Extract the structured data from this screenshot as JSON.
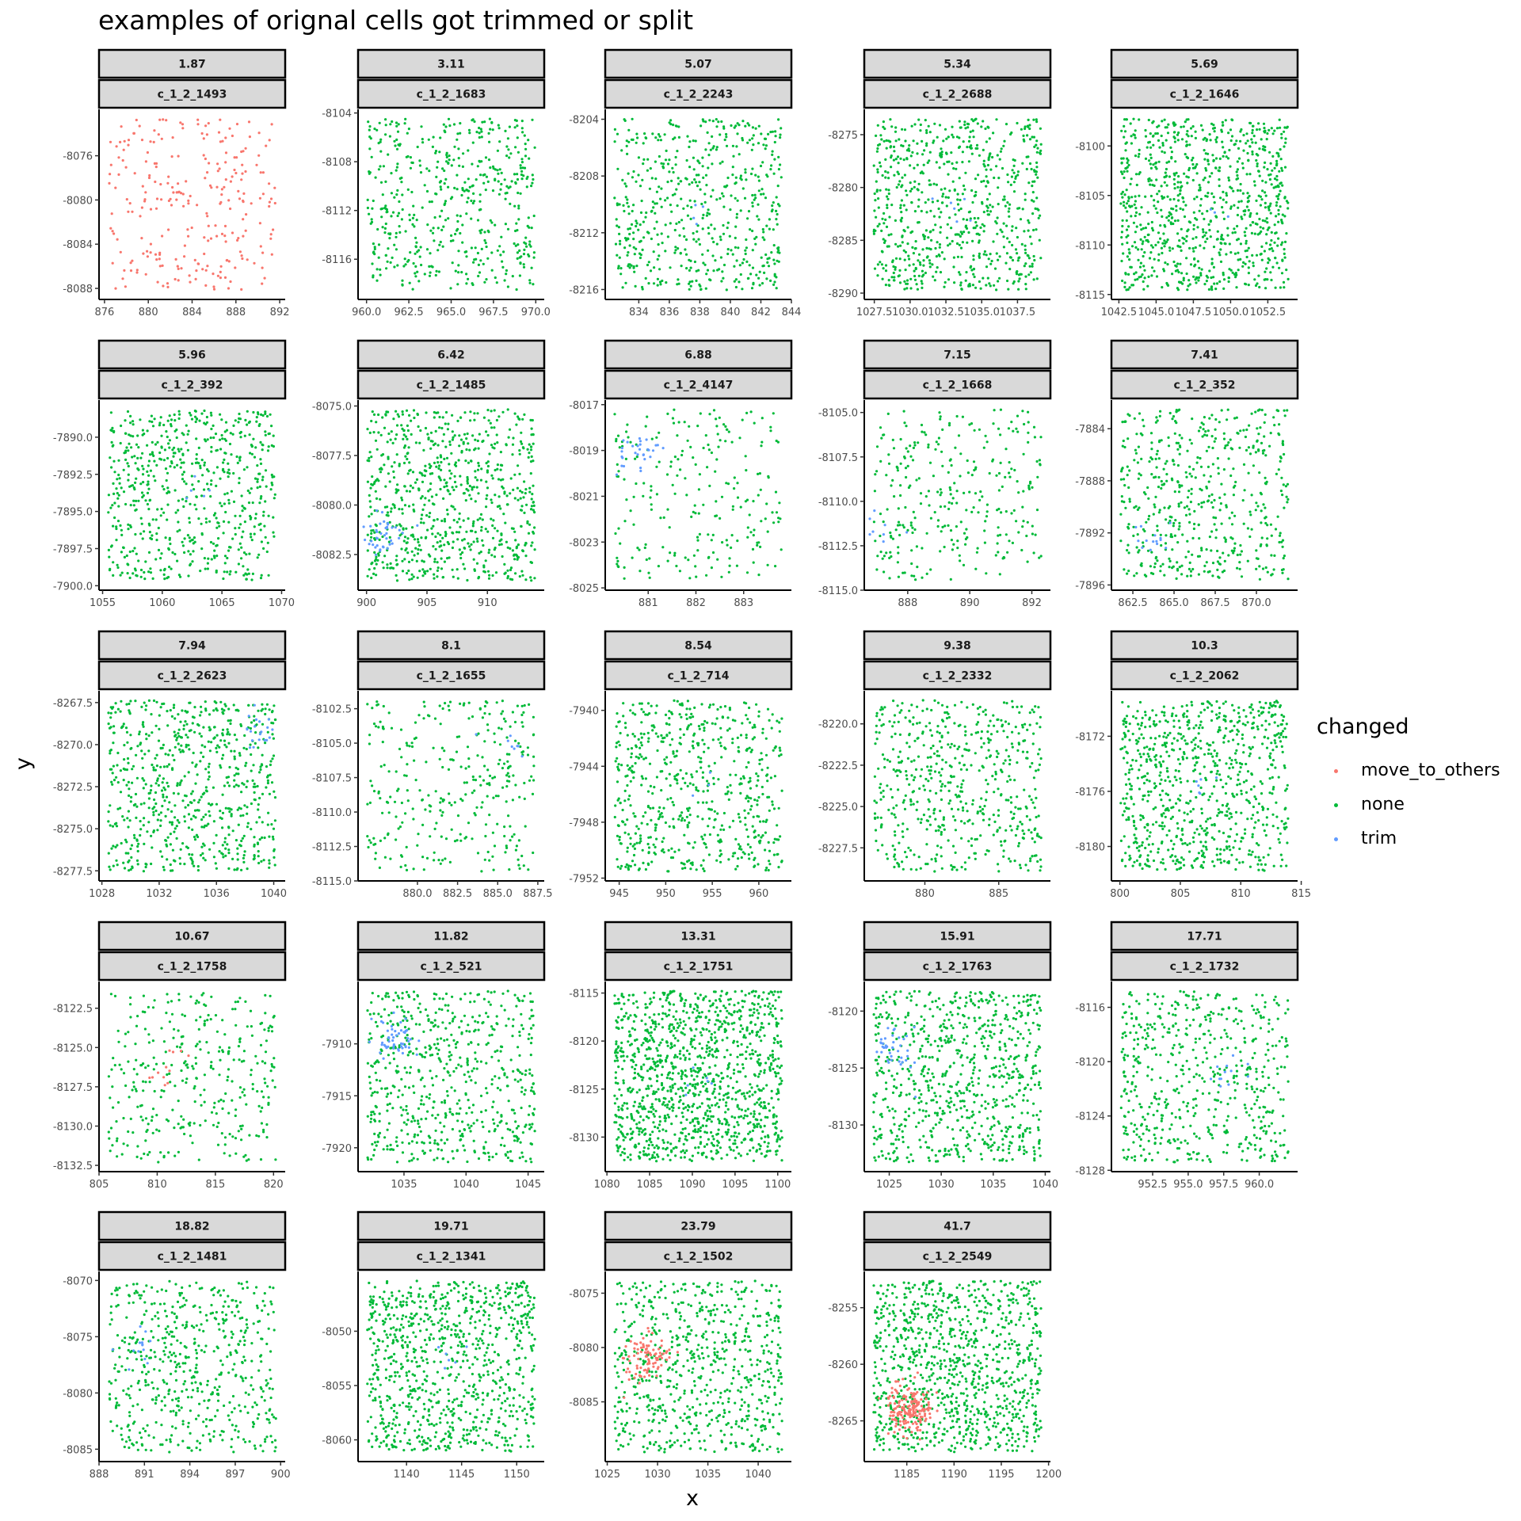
{
  "chart_data": {
    "type": "scatter",
    "title": "examples of orignal cells got trimmed or split",
    "xlabel": "x",
    "ylabel": "y",
    "legend": {
      "title": "changed",
      "position": "right",
      "entries": [
        {
          "name": "move_to_others",
          "color": "#F8766D"
        },
        {
          "name": "none",
          "color": "#00BA38"
        },
        {
          "name": "trim",
          "color": "#619CFF"
        }
      ]
    },
    "grid": false,
    "panels": [
      {
        "value": "1.87",
        "cell": "c_1_2_1493",
        "xlim": [
          875.5,
          892.5
        ],
        "ylim": [
          -8089,
          -8071.8
        ],
        "xticks": [
          876,
          880,
          884,
          888,
          892
        ],
        "xtick_labels": [
          "876",
          "880",
          "884",
          "888",
          "892"
        ],
        "yticks": [
          -8088,
          -8084,
          -8080,
          -8076
        ],
        "ytick_labels": [
          "-8088",
          "-8084",
          "-8080",
          "-8076"
        ]
      },
      {
        "value": "3.11",
        "cell": "c_1_2_1683",
        "xlim": [
          959.5,
          970.5
        ],
        "ylim": [
          -8119.3,
          -8103.7
        ],
        "xticks": [
          960,
          962.5,
          965,
          967.5,
          970
        ],
        "xtick_labels": [
          "960.0",
          "962.5",
          "965.0",
          "967.5",
          "970.0"
        ],
        "yticks": [
          -8116,
          -8112,
          -8108,
          -8104
        ],
        "ytick_labels": [
          "-8116",
          "-8112",
          "-8108",
          "-8104"
        ]
      },
      {
        "value": "5.07",
        "cell": "c_1_2_2243",
        "xlim": [
          831.8,
          844
        ],
        "ylim": [
          -8216.7,
          -8203.3
        ],
        "xticks": [
          834,
          836,
          838,
          840,
          842,
          844
        ],
        "xtick_labels": [
          "834",
          "836",
          "838",
          "840",
          "842",
          "844"
        ],
        "yticks": [
          -8216,
          -8212,
          -8208,
          -8204
        ],
        "ytick_labels": [
          "-8216",
          "-8212",
          "-8208",
          "-8204"
        ]
      },
      {
        "value": "5.34",
        "cell": "c_1_2_2688",
        "xlim": [
          1026.8,
          1039.8
        ],
        "ylim": [
          -8290.6,
          -8272.6
        ],
        "xticks": [
          1027.5,
          1030,
          1032.5,
          1035,
          1037.5
        ],
        "xtick_labels": [
          "1027.5",
          "1030.0",
          "1032.5",
          "1035.0",
          "1037.5"
        ],
        "yticks": [
          -8290,
          -8285,
          -8280,
          -8275
        ],
        "ytick_labels": [
          "-8290",
          "-8285",
          "-8280",
          "-8275"
        ]
      },
      {
        "value": "5.69",
        "cell": "c_1_2_1646",
        "xlim": [
          1042,
          1054.5
        ],
        "ylim": [
          -8115.5,
          -8096.3
        ],
        "xticks": [
          1042.5,
          1045,
          1047.5,
          1050,
          1052.5
        ],
        "xtick_labels": [
          "1042.5",
          "1045.0",
          "1047.5",
          "1050.0",
          "1052.5"
        ],
        "yticks": [
          -8115,
          -8110,
          -8105,
          -8100
        ],
        "ytick_labels": [
          "-8115",
          "-8110",
          "-8105",
          "-8100"
        ]
      },
      {
        "value": "5.96",
        "cell": "c_1_2_392",
        "xlim": [
          1054.7,
          1070.3
        ],
        "ylim": [
          -7900.3,
          -7887.5
        ],
        "xticks": [
          1055,
          1060,
          1065,
          1070
        ],
        "xtick_labels": [
          "1055",
          "1060",
          "1065",
          "1070"
        ],
        "yticks": [
          -7900,
          -7897.5,
          -7895,
          -7892.5,
          -7890
        ],
        "ytick_labels": [
          "-7900.0",
          "-7897.5",
          "-7895.0",
          "-7892.5",
          "-7890.0"
        ]
      },
      {
        "value": "6.42",
        "cell": "c_1_2_1485",
        "xlim": [
          899.3,
          914.7
        ],
        "ylim": [
          -8084.3,
          -8074.7
        ],
        "xticks": [
          900,
          905,
          910
        ],
        "xtick_labels": [
          "900",
          "905",
          "910"
        ],
        "yticks": [
          -8082.5,
          -8080,
          -8077.5,
          -8075
        ],
        "ytick_labels": [
          "-8082.5",
          "-8080.0",
          "-8077.5",
          "-8075.0"
        ]
      },
      {
        "value": "6.88",
        "cell": "c_1_2_4147",
        "xlim": [
          880.1,
          884
        ],
        "ylim": [
          -8025.1,
          -8016.8
        ],
        "xticks": [
          881,
          882,
          883
        ],
        "xtick_labels": [
          "881",
          "882",
          "883"
        ],
        "yticks": [
          -8025,
          -8023,
          -8021,
          -8019,
          -8017
        ],
        "ytick_labels": [
          "-8025",
          "-8023",
          "-8021",
          "-8019",
          "-8017"
        ]
      },
      {
        "value": "7.15",
        "cell": "c_1_2_1668",
        "xlim": [
          886.6,
          892.6
        ],
        "ylim": [
          -8115,
          -8104.3
        ],
        "xticks": [
          888,
          890,
          892
        ],
        "xtick_labels": [
          "888",
          "890",
          "892"
        ],
        "yticks": [
          -8115,
          -8112.5,
          -8110,
          -8107.5,
          -8105
        ],
        "ytick_labels": [
          "-8115.0",
          "-8112.5",
          "-8110.0",
          "-8107.5",
          "-8105.0"
        ]
      },
      {
        "value": "7.41",
        "cell": "c_1_2_352",
        "xlim": [
          861.2,
          872.5
        ],
        "ylim": [
          -7896.4,
          -7881.8
        ],
        "xticks": [
          862.5,
          865,
          867.5,
          870
        ],
        "xtick_labels": [
          "862.5",
          "865.0",
          "867.5",
          "870.0"
        ],
        "yticks": [
          -7896,
          -7892,
          -7888,
          -7884
        ],
        "ytick_labels": [
          "-7896",
          "-7892",
          "-7888",
          "-7884"
        ]
      },
      {
        "value": "7.94",
        "cell": "c_1_2_2623",
        "xlim": [
          1027.8,
          1040.8
        ],
        "ylim": [
          -8278.1,
          -8266.8
        ],
        "xticks": [
          1028,
          1032,
          1036,
          1040
        ],
        "xtick_labels": [
          "1028",
          "1032",
          "1036",
          "1040"
        ],
        "yticks": [
          -8277.5,
          -8275,
          -8272.5,
          -8270,
          -8267.5
        ],
        "ytick_labels": [
          "-8277.5",
          "-8275.0",
          "-8272.5",
          "-8270.0",
          "-8267.5"
        ]
      },
      {
        "value": "8.1",
        "cell": "c_1_2_1655",
        "xlim": [
          876.3,
          887.9
        ],
        "ylim": [
          -8115,
          -8101.2
        ],
        "xticks": [
          880,
          882.5,
          885,
          887.5
        ],
        "xtick_labels": [
          "880.0",
          "882.5",
          "885.0",
          "887.5"
        ],
        "yticks": [
          -8115,
          -8112.5,
          -8110,
          -8107.5,
          -8105,
          -8102.5
        ],
        "ytick_labels": [
          "-8115.0",
          "-8112.5",
          "-8110.0",
          "-8107.5",
          "-8105.0",
          "-8102.5"
        ]
      },
      {
        "value": "8.54",
        "cell": "c_1_2_714",
        "xlim": [
          943.5,
          963.5
        ],
        "ylim": [
          -7952.2,
          -7938.6
        ],
        "xticks": [
          945,
          950,
          955,
          960
        ],
        "xtick_labels": [
          "945",
          "950",
          "955",
          "960"
        ],
        "yticks": [
          -7952,
          -7948,
          -7944,
          -7940
        ],
        "ytick_labels": [
          "-7952",
          "-7948",
          "-7944",
          "-7940"
        ]
      },
      {
        "value": "9.38",
        "cell": "c_1_2_2332",
        "xlim": [
          875.9,
          888.5
        ],
        "ylim": [
          -8229.5,
          -8218
        ],
        "xticks": [
          880,
          885
        ],
        "xtick_labels": [
          "880",
          "885"
        ],
        "yticks": [
          -8227.5,
          -8225,
          -8222.5,
          -8220
        ],
        "ytick_labels": [
          "-8227.5",
          "-8225.0",
          "-8222.5",
          "-8220.0"
        ]
      },
      {
        "value": "10.3",
        "cell": "c_1_2_2062",
        "xlim": [
          799.3,
          814.7
        ],
        "ylim": [
          -8182.5,
          -8168.7
        ],
        "xticks": [
          800,
          805,
          810,
          815
        ],
        "xtick_labels": [
          "800",
          "805",
          "810",
          "815"
        ],
        "yticks": [
          -8180,
          -8176,
          -8172
        ],
        "ytick_labels": [
          "-8180",
          "-8176",
          "-8172"
        ]
      },
      {
        "value": "10.67",
        "cell": "c_1_2_1758",
        "xlim": [
          805,
          821
        ],
        "ylim": [
          -8132.9,
          -8120.8
        ],
        "xticks": [
          805,
          810,
          815,
          820
        ],
        "xtick_labels": [
          "805",
          "810",
          "815",
          "820"
        ],
        "yticks": [
          -8132.5,
          -8130,
          -8127.5,
          -8125,
          -8122.5
        ],
        "ytick_labels": [
          "-8132.5",
          "-8130.0",
          "-8127.5",
          "-8125.0",
          "-8122.5"
        ]
      },
      {
        "value": "11.82",
        "cell": "c_1_2_521",
        "xlim": [
          1031.3,
          1046.3
        ],
        "ylim": [
          -7922.3,
          -7904
        ],
        "xticks": [
          1035,
          1040,
          1045
        ],
        "xtick_labels": [
          "1035",
          "1040",
          "1045"
        ],
        "yticks": [
          -7920,
          -7915,
          -7910
        ],
        "ytick_labels": [
          "-7920",
          "-7915",
          "-7910"
        ]
      },
      {
        "value": "13.31",
        "cell": "c_1_2_1751",
        "xlim": [
          1079.8,
          1101.6
        ],
        "ylim": [
          -8133.6,
          -8113.8
        ],
        "xticks": [
          1080,
          1085,
          1090,
          1095,
          1100
        ],
        "xtick_labels": [
          "1080",
          "1085",
          "1090",
          "1095",
          "1100"
        ],
        "yticks": [
          -8130,
          -8125,
          -8120,
          -8115
        ],
        "ytick_labels": [
          "-8130",
          "-8125",
          "-8120",
          "-8115"
        ]
      },
      {
        "value": "15.91",
        "cell": "c_1_2_1763",
        "xlim": [
          1022.6,
          1040.5
        ],
        "ylim": [
          -8134.1,
          -8117.4
        ],
        "xticks": [
          1025,
          1030,
          1035,
          1040
        ],
        "xtick_labels": [
          "1025",
          "1030",
          "1035",
          "1040"
        ],
        "yticks": [
          -8130,
          -8125,
          -8120
        ],
        "ytick_labels": [
          "-8130",
          "-8125",
          "-8120"
        ]
      },
      {
        "value": "17.71",
        "cell": "c_1_2_1732",
        "xlim": [
          949.6,
          962.7
        ],
        "ylim": [
          -8128.1,
          -8114.1
        ],
        "xticks": [
          952.5,
          955,
          957.5,
          960
        ],
        "xtick_labels": [
          "952.5",
          "955.0",
          "957.5",
          "960.0"
        ],
        "yticks": [
          -8128,
          -8124,
          -8120,
          -8116
        ],
        "ytick_labels": [
          "-8128",
          "-8124",
          "-8120",
          "-8116"
        ]
      },
      {
        "value": "18.82",
        "cell": "c_1_2_1481",
        "xlim": [
          888,
          900.3
        ],
        "ylim": [
          -8086.1,
          -8069.2
        ],
        "xticks": [
          888,
          891,
          894,
          897,
          900
        ],
        "xtick_labels": [
          "888",
          "891",
          "894",
          "897",
          "900"
        ],
        "yticks": [
          -8085,
          -8080,
          -8075,
          -8070
        ],
        "ytick_labels": [
          "-8085",
          "-8080",
          "-8075",
          "-8070"
        ]
      },
      {
        "value": "19.71",
        "cell": "c_1_2_1341",
        "xlim": [
          1135.6,
          1152.5
        ],
        "ylim": [
          -8062,
          -8044.5
        ],
        "xticks": [
          1140,
          1145,
          1150
        ],
        "xtick_labels": [
          "1140",
          "1145",
          "1150"
        ],
        "yticks": [
          -8060,
          -8055,
          -8050
        ],
        "ytick_labels": [
          "-8060",
          "-8055",
          "-8050"
        ]
      },
      {
        "value": "23.79",
        "cell": "c_1_2_1502",
        "xlim": [
          1024.8,
          1043.3
        ],
        "ylim": [
          -8090.5,
          -8073
        ],
        "xticks": [
          1025,
          1030,
          1035,
          1040
        ],
        "xtick_labels": [
          "1025",
          "1030",
          "1035",
          "1040"
        ],
        "yticks": [
          -8085,
          -8080,
          -8075
        ],
        "ytick_labels": [
          "-8085",
          "-8080",
          "-8075"
        ]
      },
      {
        "value": "41.7",
        "cell": "c_1_2_2549",
        "xlim": [
          1180.5,
          1200.2
        ],
        "ylim": [
          -8268.6,
          -8251.8
        ],
        "xticks": [
          1185,
          1190,
          1195,
          1200
        ],
        "xtick_labels": [
          "1185",
          "1190",
          "1195",
          "1200"
        ],
        "yticks": [
          -8265,
          -8260,
          -8255
        ],
        "ytick_labels": [
          "-8265",
          "-8260",
          "-8255"
        ]
      }
    ]
  }
}
